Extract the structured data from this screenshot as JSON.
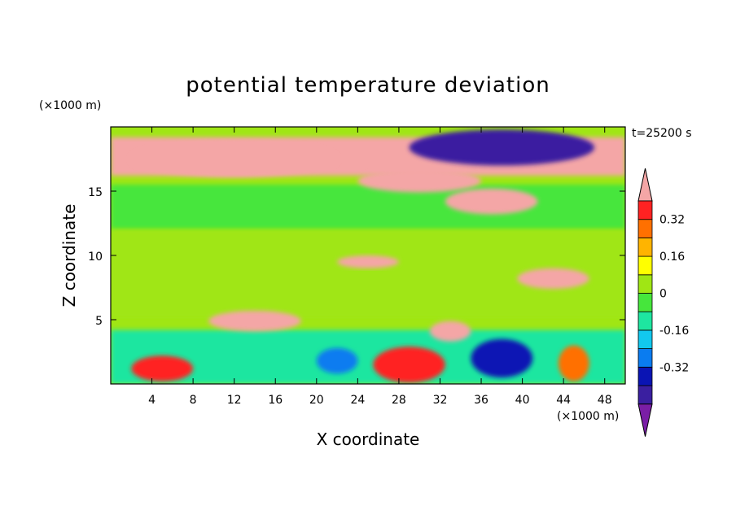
{
  "chart_data": {
    "type": "heatmap",
    "title": "potential temperature deviation",
    "xlabel": "X coordinate",
    "ylabel": "Z coordinate",
    "x_unit": "(×1000 m)",
    "y_unit": "(×1000 m)",
    "time_label": "t=25200 s",
    "xlim": [
      0,
      50
    ],
    "ylim": [
      0,
      20
    ],
    "x_ticks": [
      4,
      8,
      12,
      16,
      20,
      24,
      28,
      32,
      36,
      40,
      44,
      48
    ],
    "y_ticks": [
      5,
      10,
      15
    ],
    "colorbar": {
      "levels": [
        -0.48,
        -0.4,
        -0.32,
        -0.24,
        -0.16,
        -0.08,
        0,
        0.08,
        0.16,
        0.24,
        0.32,
        0.4
      ],
      "tick_labels": [
        "0.32",
        "0.16",
        "0",
        "-0.16",
        "-0.32"
      ],
      "tick_values": [
        0.32,
        0.16,
        0,
        -0.16,
        -0.32
      ],
      "colors": [
        "#7a1ea6",
        "#3a1fa0",
        "#0a14b4",
        "#0a7cf0",
        "#12c8ee",
        "#1ee6a0",
        "#46e63c",
        "#a0e614",
        "#ffff00",
        "#ffb400",
        "#ff7000",
        "#ff2222",
        "#f4a6a6"
      ]
    },
    "regions": [
      {
        "type": "band",
        "z": [
          16.2,
          19.2
        ],
        "x": [
          0,
          50
        ],
        "value": 0.45
      },
      {
        "type": "band",
        "z": [
          12.0,
          15.5
        ],
        "x": [
          0,
          50
        ],
        "value": -0.05
      },
      {
        "type": "band",
        "z": [
          5.2,
          12.0
        ],
        "x": [
          0,
          50
        ],
        "value": 0.03
      },
      {
        "type": "band",
        "z": [
          0.0,
          4.2
        ],
        "x": [
          0,
          50
        ],
        "value": -0.1
      },
      {
        "type": "blob",
        "cx": 12,
        "cz": 17.5,
        "rx": 10,
        "rz": 1.4,
        "value": 0.45
      },
      {
        "type": "blob",
        "cx": 38,
        "cz": 18.4,
        "rx": 9,
        "rz": 1.4,
        "value": -0.45
      },
      {
        "type": "blob",
        "cx": 30,
        "cz": 15.8,
        "rx": 6,
        "rz": 0.9,
        "value": 0.45
      },
      {
        "type": "blob",
        "cx": 37,
        "cz": 14.2,
        "rx": 4.5,
        "rz": 1.0,
        "value": 0.45
      },
      {
        "type": "blob",
        "cx": 25,
        "cz": 9.5,
        "rx": 3,
        "rz": 0.5,
        "value": 0.4
      },
      {
        "type": "blob",
        "cx": 43,
        "cz": 8.2,
        "rx": 3.5,
        "rz": 0.8,
        "value": 0.4
      },
      {
        "type": "blob",
        "cx": 14,
        "cz": 4.9,
        "rx": 4.5,
        "rz": 0.8,
        "value": 0.45
      },
      {
        "type": "blob",
        "cx": 33,
        "cz": 4.1,
        "rx": 2,
        "rz": 0.8,
        "value": 0.4
      },
      {
        "type": "blob",
        "cx": 5,
        "cz": 1.2,
        "rx": 3,
        "rz": 1.0,
        "value": 0.35
      },
      {
        "type": "blob",
        "cx": 29,
        "cz": 1.5,
        "rx": 3.5,
        "rz": 1.4,
        "value": 0.35
      },
      {
        "type": "blob",
        "cx": 45,
        "cz": 1.6,
        "rx": 1.5,
        "rz": 1.4,
        "value": 0.3
      },
      {
        "type": "blob",
        "cx": 38,
        "cz": 2.0,
        "rx": 3,
        "rz": 1.5,
        "value": -0.35
      },
      {
        "type": "blob",
        "cx": 22,
        "cz": 1.8,
        "rx": 2,
        "rz": 1.0,
        "value": -0.3
      }
    ]
  }
}
